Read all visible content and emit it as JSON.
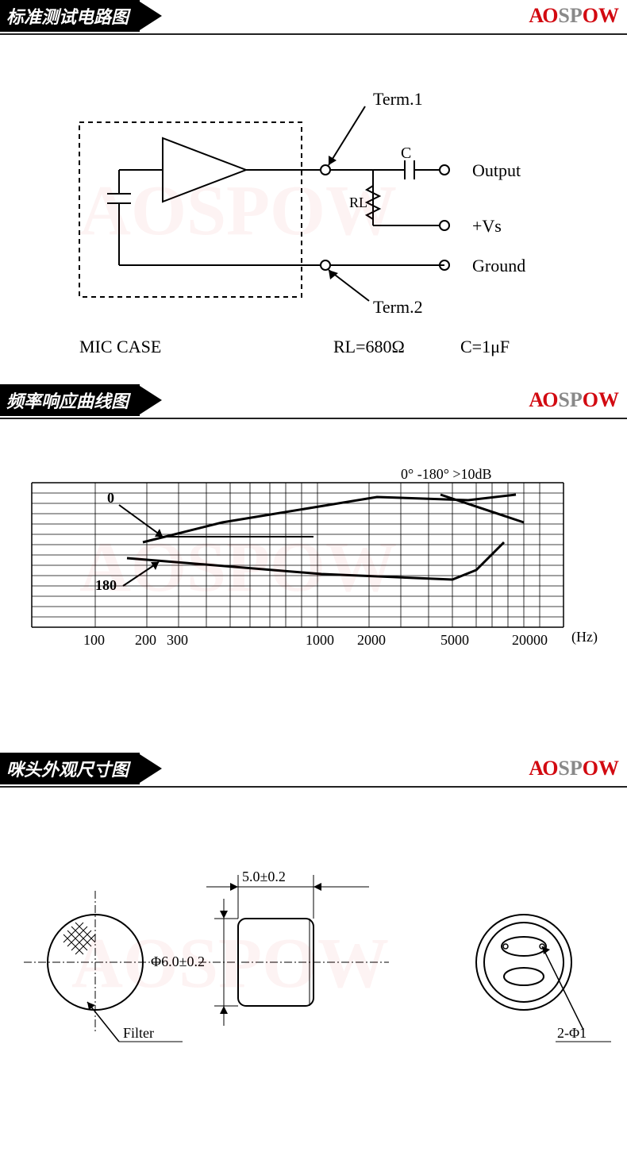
{
  "brand": {
    "a": "A",
    "o": "O",
    "sp": "SP",
    "o2": "O",
    "w": "W"
  },
  "section1": {
    "title": "标准测试电路图",
    "circuit": {
      "type": "circuit-diagram",
      "stroke": "#000000",
      "stroke_width": 2,
      "bg": "#ffffff",
      "labels": {
        "term1": "Term.1",
        "term2": "Term.2",
        "output": "Output",
        "vs": "+Vs",
        "ground": "Ground",
        "c": "C",
        "rl": "RL",
        "mic_case": "MIC CASE",
        "rl_val": "RL=680Ω",
        "c_val": "C=1μF"
      },
      "text_fontsize": 20,
      "node_radius": 4
    }
  },
  "section2": {
    "title": "频率响应曲线图",
    "chart": {
      "type": "frequency-response",
      "stroke": "#000000",
      "grid_color": "#000000",
      "bg": "#ffffff",
      "x_label": "(Hz)",
      "x_ticks": [
        "100",
        "200",
        "300",
        "1000",
        "2000",
        "5000",
        "20000"
      ],
      "y_lines": 14,
      "annotation": "0° -180° >10dB",
      "curve0_label": "0",
      "curve180_label": "180",
      "curve0_points": [
        [
          180,
          155
        ],
        [
          280,
          130
        ],
        [
          475,
          98
        ],
        [
          590,
          102
        ],
        [
          650,
          95
        ]
      ],
      "curve0b_points": [
        [
          555,
          95
        ],
        [
          660,
          130
        ]
      ],
      "curve180_points": [
        [
          160,
          175
        ],
        [
          405,
          195
        ],
        [
          570,
          202
        ],
        [
          600,
          190
        ],
        [
          635,
          155
        ]
      ],
      "label_fontsize": 18
    }
  },
  "section3": {
    "title": "咪头外观尺寸图",
    "drawing": {
      "type": "mechanical-drawing",
      "stroke": "#000000",
      "bg": "#ffffff",
      "front": {
        "diameter_label": "Filter"
      },
      "side": {
        "width_label": "5.0±0.2",
        "dia_label": "Φ6.0±0.2"
      },
      "rear": {
        "pin_label": "2-Φ1"
      },
      "label_fontsize": 18
    }
  }
}
